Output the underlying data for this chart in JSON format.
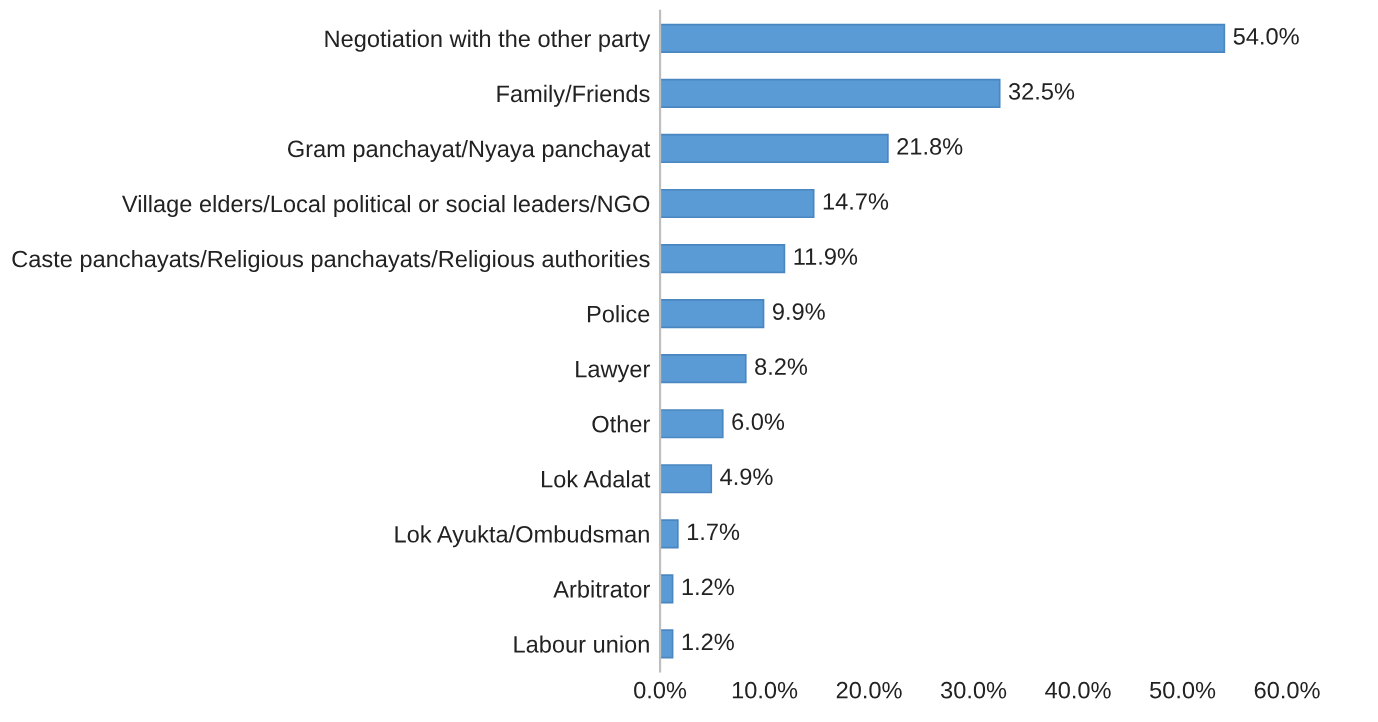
{
  "chart_data": {
    "type": "bar",
    "orientation": "horizontal",
    "categories": [
      "Negotiation with the other party",
      "Family/Friends",
      "Gram panchayat/Nyaya panchayat",
      "Village elders/Local political or social leaders/NGO",
      "Caste panchayats/Religious panchayats/Religious authorities",
      "Police",
      "Lawyer",
      "Other",
      "Lok Adalat",
      "Lok Ayukta/Ombudsman",
      "Arbitrator",
      "Labour union"
    ],
    "values": [
      54.0,
      32.5,
      21.8,
      14.7,
      11.9,
      9.9,
      8.2,
      6.0,
      4.9,
      1.7,
      1.2,
      1.2
    ],
    "value_labels": [
      "54.0%",
      "32.5%",
      "21.8%",
      "14.7%",
      "11.9%",
      "9.9%",
      "8.2%",
      "6.0%",
      "4.9%",
      "1.7%",
      "1.2%",
      "1.2%"
    ],
    "color": "#5b9bd5",
    "xlim": [
      0,
      60
    ],
    "xticks": [
      {
        "value": 0,
        "label": "0.0%"
      },
      {
        "value": 10,
        "label": "10.0%"
      },
      {
        "value": 20,
        "label": "20.0%"
      },
      {
        "value": 30,
        "label": "30.0%"
      },
      {
        "value": 40,
        "label": "40.0%"
      },
      {
        "value": 50,
        "label": "50.0%"
      },
      {
        "value": 60,
        "label": "60.0%"
      }
    ],
    "grid": false,
    "legend": false
  }
}
